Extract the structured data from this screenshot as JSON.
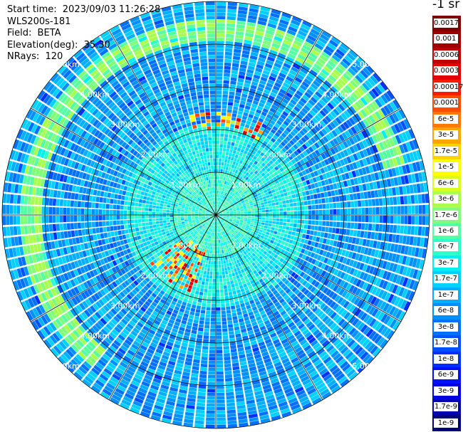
{
  "info": {
    "start_time_label": "Start time:",
    "start_time_value": "2023/09/03 11:26:28",
    "instrument": "WLS200s-181",
    "field_label": "Field:",
    "field_value": "BETA",
    "elevation_label": "Elevation(deg):",
    "elevation_value": "35.30",
    "nrays_label": "NRays:",
    "nrays_value": "120"
  },
  "colorbar": {
    "unit": "-1 sr",
    "levels": [
      {
        "label": "0.0017",
        "color": "#800000"
      },
      {
        "label": "0.001",
        "color": "#a00000"
      },
      {
        "label": "0.0006",
        "color": "#c00000"
      },
      {
        "label": "0.0003",
        "color": "#e30000"
      },
      {
        "label": "0.00017",
        "color": "#ff1a00"
      },
      {
        "label": "0.0001",
        "color": "#ff4a00"
      },
      {
        "label": "6e-5",
        "color": "#ff7800"
      },
      {
        "label": "3e-5",
        "color": "#ffa500"
      },
      {
        "label": "1.7e-5",
        "color": "#ffd200"
      },
      {
        "label": "1e-5",
        "color": "#ffff00"
      },
      {
        "label": "6e-6",
        "color": "#d6ff21"
      },
      {
        "label": "3e-6",
        "color": "#aaff4d"
      },
      {
        "label": "1.7e-6",
        "color": "#80ff78"
      },
      {
        "label": "1e-6",
        "color": "#56ffa2"
      },
      {
        "label": "6e-7",
        "color": "#2dffcc"
      },
      {
        "label": "3e-7",
        "color": "#00f0f0"
      },
      {
        "label": "1.7e-7",
        "color": "#00d0ff"
      },
      {
        "label": "1e-7",
        "color": "#00b0ff"
      },
      {
        "label": "6e-8",
        "color": "#0090ff"
      },
      {
        "label": "3e-8",
        "color": "#0070ff"
      },
      {
        "label": "1.7e-8",
        "color": "#0050ff"
      },
      {
        "label": "1e-8",
        "color": "#0030ff"
      },
      {
        "label": "6e-9",
        "color": "#0010ff"
      },
      {
        "label": "3e-9",
        "color": "#0000e0"
      },
      {
        "label": "1.7e-9",
        "color": "#0000b0"
      },
      {
        "label": "1e-9",
        "color": "#00007a"
      }
    ]
  },
  "range_rings": [
    {
      "km": 1,
      "label": "1.00km"
    },
    {
      "km": 2,
      "label": "2.00km"
    },
    {
      "km": 3,
      "label": "3.00km"
    },
    {
      "km": 4,
      "label": "4.00km"
    },
    {
      "km": 5,
      "label": "5.00km"
    }
  ],
  "max_range_km": 5
}
